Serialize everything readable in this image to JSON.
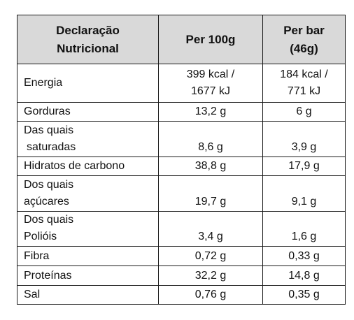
{
  "table": {
    "headers": {
      "name_line1": "Declaração",
      "name_line2": "Nutricional",
      "per100": "Per 100g",
      "perbar_line1": "Per bar",
      "perbar_line2": "(46g)"
    },
    "rows": [
      {
        "name": "Energia",
        "per100_line1": "399 kcal /",
        "per100_line2": "1677 kJ",
        "perbar_line1": "184 kcal /",
        "perbar_line2": "771 kJ"
      },
      {
        "name": "Gorduras",
        "per100": "13,2 g",
        "perbar": "6 g"
      },
      {
        "name_line1": "Das quais",
        "name_line2": "saturadas",
        "per100": "8,6 g",
        "perbar": "3,9 g"
      },
      {
        "name": "Hidratos de carbono",
        "per100": "38,8 g",
        "perbar": "17,9 g"
      },
      {
        "name_line1": "Dos quais",
        "name_line2": "açúcares",
        "per100": "19,7 g",
        "perbar": "9,1 g"
      },
      {
        "name_line1": "Dos quais",
        "name_line2": "Polióis",
        "per100": "3,4 g",
        "perbar": "1,6 g"
      },
      {
        "name": "Fibra",
        "per100": "0,72 g",
        "perbar": "0,33 g"
      },
      {
        "name": "Proteínas",
        "per100": "32,2 g",
        "perbar": "14,8 g"
      },
      {
        "name": "Sal",
        "per100": "0,76 g",
        "perbar": "0,35 g"
      }
    ]
  }
}
